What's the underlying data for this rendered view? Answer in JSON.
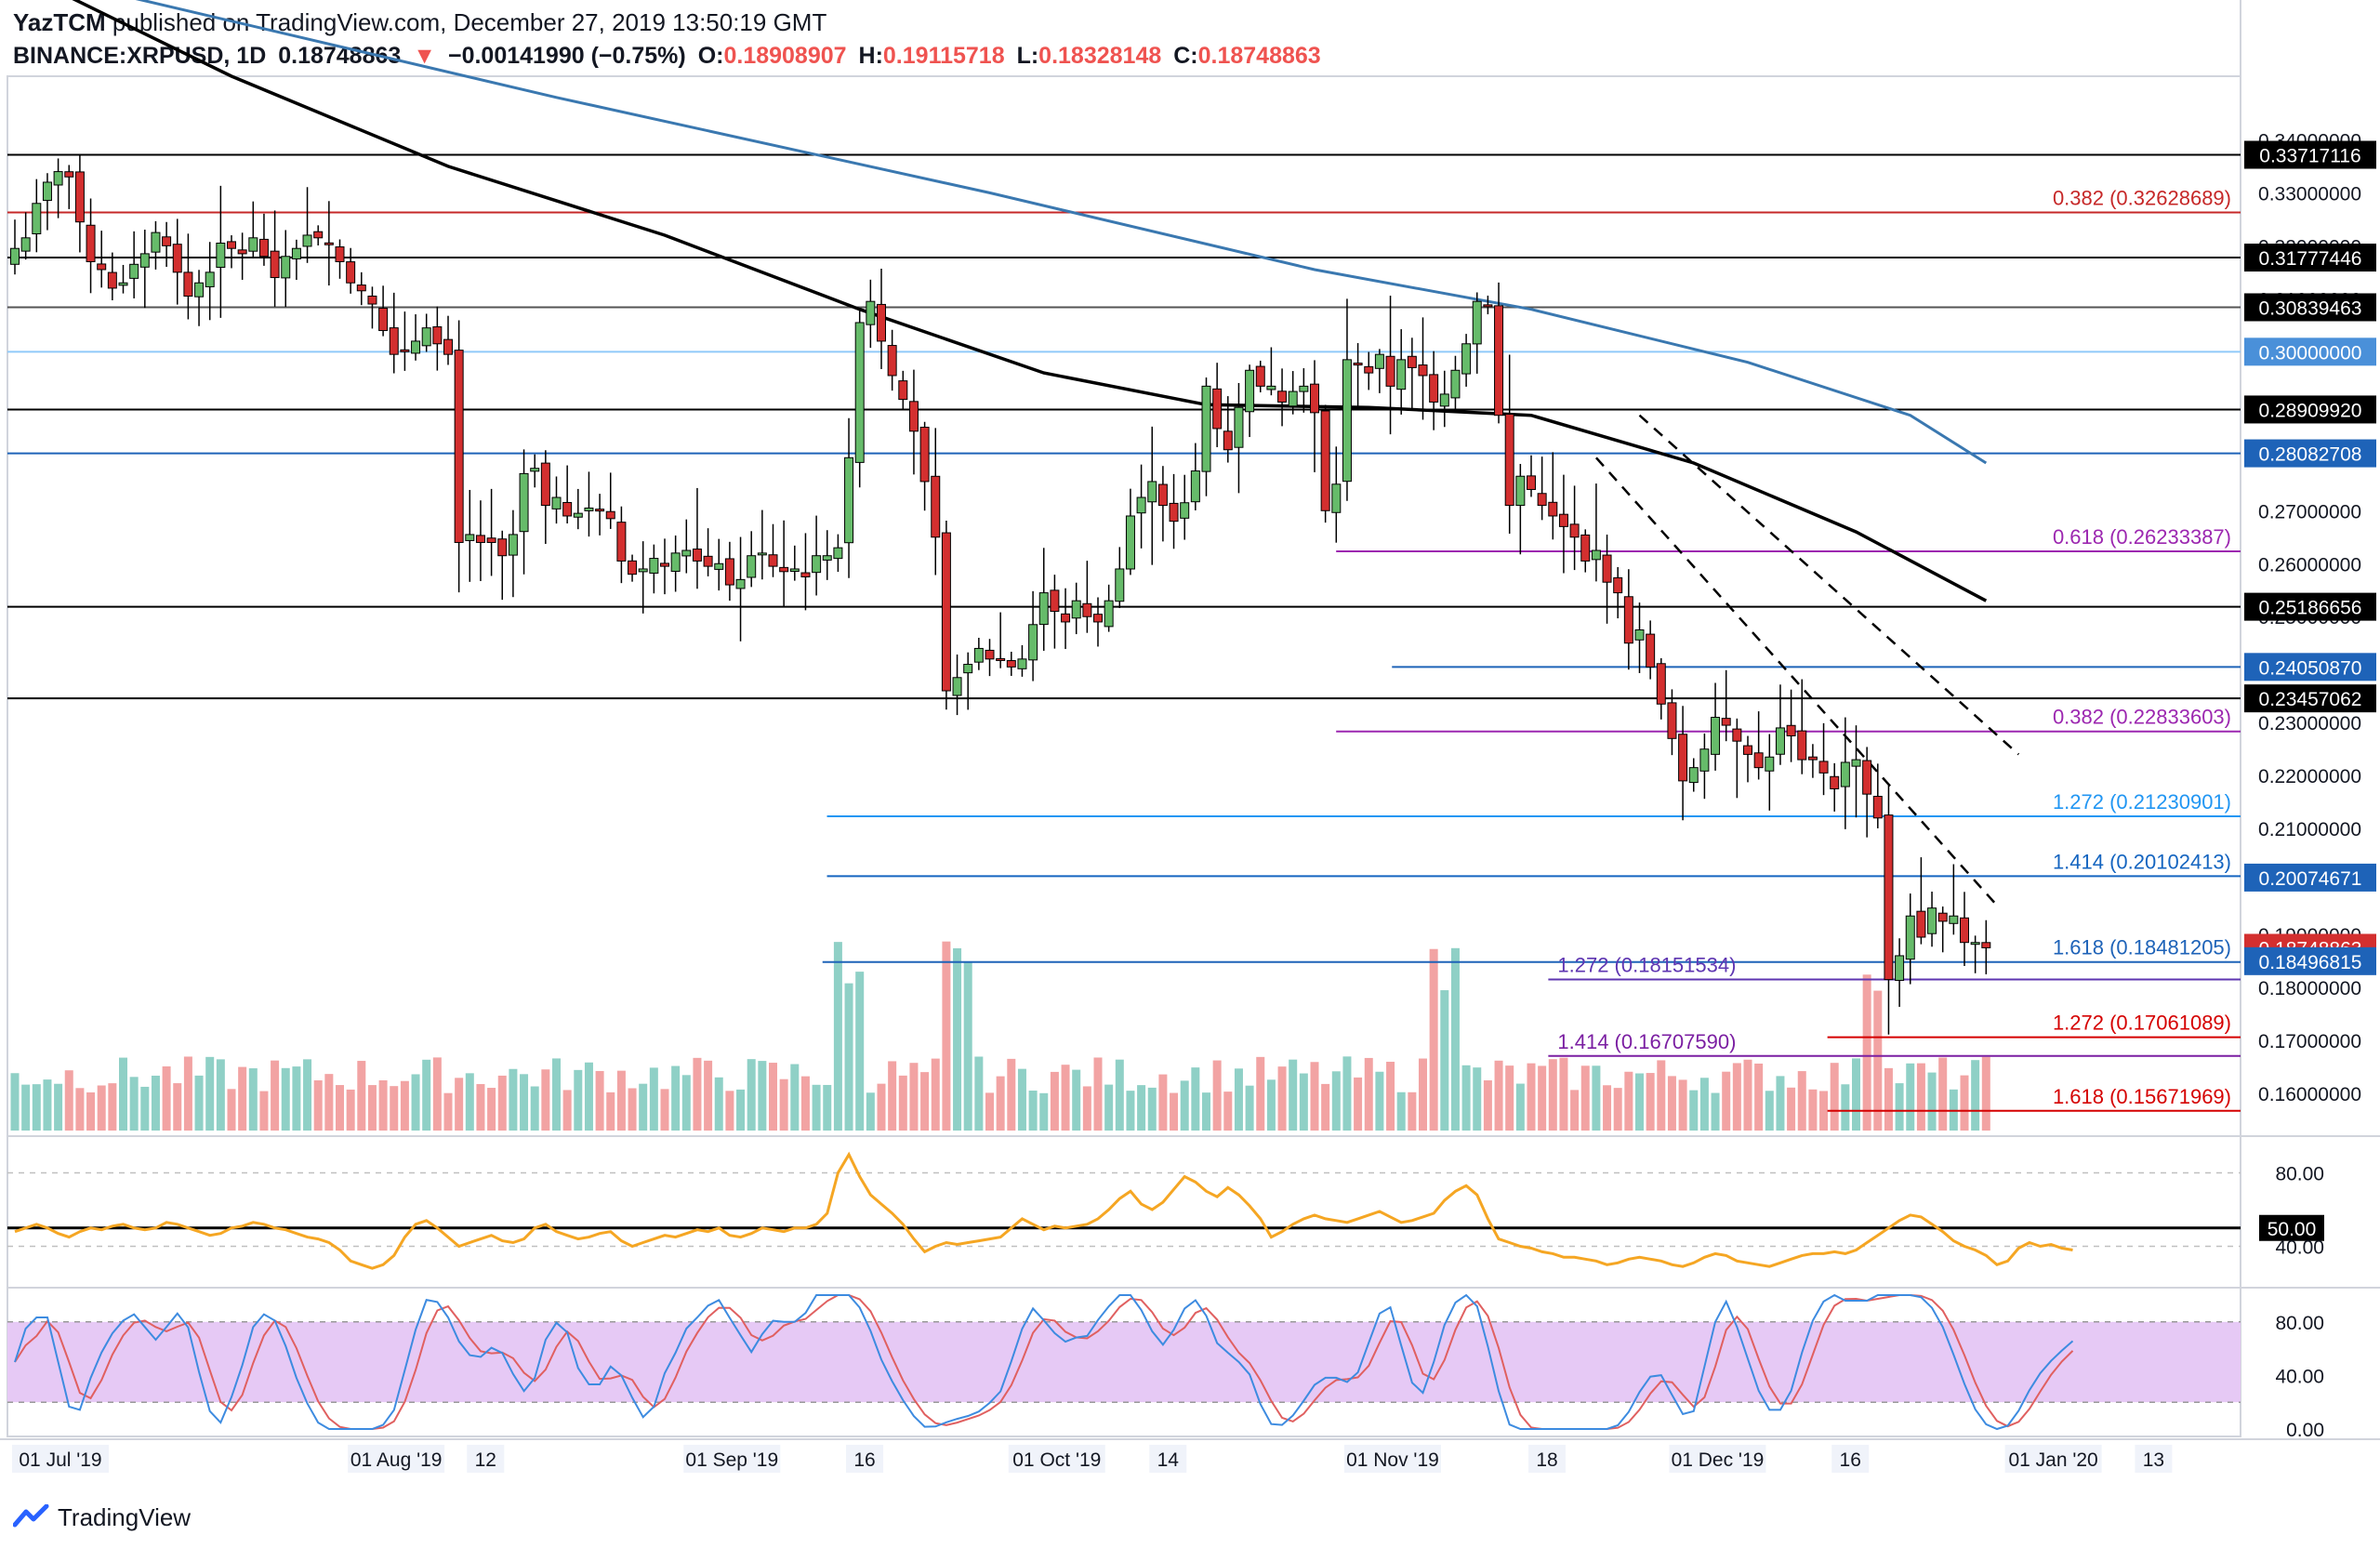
{
  "header": {
    "publisher": "YazTCM",
    "published_text": "published on TradingView.com, December 27, 2019 13:50:19 GMT",
    "symbol": "BINANCE:XRPUSD, 1D",
    "last": "0.18748863",
    "change": "−0.00141990 (−0.75%)",
    "o_label": "O:",
    "o": "0.18908907",
    "h_label": "H:",
    "h": "0.19115718",
    "l_label": "L:",
    "l": "0.18328148",
    "c_label": "C:",
    "c": "0.18748863"
  },
  "footer": {
    "brand": "TradingView"
  },
  "colors": {
    "up": "#66bb6a",
    "down": "#d32f2f",
    "vol_up": "#8fd0c6",
    "vol_down": "#f2a3a3",
    "ma100": "#000000",
    "ma200": "#3a78b0",
    "rsi": "#f5a623",
    "stoch_k": "#3d8be0",
    "stoch_d": "#e06060",
    "stoch_band": "#e6c9f5",
    "fib_purple": "#9c27b0",
    "fib_blue": "#2196f3",
    "fib_red": "#d50000"
  },
  "chart_data": {
    "type": "candlestick",
    "price_axis": {
      "ticks": [
        "0.34000000",
        "0.33000000",
        "0.32000000",
        "0.31000000",
        "0.29000000",
        "0.27000000",
        "0.26000000",
        "0.25000000",
        "0.23000000",
        "0.22000000",
        "0.21000000",
        "0.19000000",
        "0.18000000",
        "0.17000000",
        "0.16000000"
      ],
      "range": [
        0.153,
        0.352
      ]
    },
    "price_labels": [
      {
        "value": 0.33717116,
        "text": "0.33717116",
        "style": "black"
      },
      {
        "value": 0.31777446,
        "text": "0.31777446",
        "style": "black"
      },
      {
        "value": 0.30839463,
        "text": "0.30839463",
        "style": "black"
      },
      {
        "value": 0.3,
        "text": "0.30000000",
        "style": "lightblue"
      },
      {
        "value": 0.2890992,
        "text": "0.28909920",
        "style": "black"
      },
      {
        "value": 0.28082708,
        "text": "0.28082708",
        "style": "blue"
      },
      {
        "value": 0.25186656,
        "text": "0.25186656",
        "style": "black"
      },
      {
        "value": 0.2405087,
        "text": "0.24050870",
        "style": "blue"
      },
      {
        "value": 0.23457062,
        "text": "0.23457062",
        "style": "black"
      },
      {
        "value": 0.20074671,
        "text": "0.20074671",
        "style": "blue"
      },
      {
        "value": 0.18748863,
        "text": "0.18748863",
        "style": "red"
      },
      {
        "value": 0.18496815,
        "text": "0.18496815",
        "style": "blue"
      }
    ],
    "horizontal_levels": [
      {
        "value": 0.33717116,
        "color": "#000000",
        "x0": 0.0
      },
      {
        "value": 0.32628689,
        "color": "#c62828",
        "x0": 0.0,
        "label": "0.382 (0.32628689)"
      },
      {
        "value": 0.31777446,
        "color": "#000000",
        "x0": 0.0
      },
      {
        "value": 0.30839463,
        "color": "#555555",
        "x0": 0.0
      },
      {
        "value": 0.3,
        "color": "#90caf9",
        "x0": 0.0
      },
      {
        "value": 0.2890992,
        "color": "#000000",
        "x0": 0.0
      },
      {
        "value": 0.28082708,
        "color": "#1e63b8",
        "x0": 0.0
      },
      {
        "value": 0.26233387,
        "color": "#9c27b0",
        "x0": 0.595,
        "label": "0.618 (0.26233387)"
      },
      {
        "value": 0.25186656,
        "color": "#000000",
        "x0": 0.0
      },
      {
        "value": 0.2405087,
        "color": "#1e63b8",
        "x0": 0.62
      },
      {
        "value": 0.23457062,
        "color": "#000000",
        "x0": 0.0
      },
      {
        "value": 0.22833603,
        "color": "#9c27b0",
        "x0": 0.595,
        "label": "0.382 (0.22833603)"
      },
      {
        "value": 0.21230901,
        "color": "#2196f3",
        "x0": 0.367,
        "label": "1.272 (0.21230901)"
      },
      {
        "value": 0.20102413,
        "color": "#1565c0",
        "x0": 0.367,
        "label": "1.414 (0.20102413)"
      },
      {
        "value": 0.18481205,
        "color": "#1e63b8",
        "x0": 0.365,
        "label": "1.618 (0.18481205)"
      },
      {
        "value": 0.18151534,
        "color": "#5e35b1",
        "x0": 0.69,
        "label": "1.272 (0.18151534)",
        "label_left": true
      },
      {
        "value": 0.17061089,
        "color": "#d50000",
        "x0": 0.815,
        "label": "1.272 (0.17061089)"
      },
      {
        "value": 0.1670759,
        "color": "#7b1fa2",
        "x0": 0.69,
        "label": "1.414 (0.16707590)",
        "label_left": true
      },
      {
        "value": 0.15671969,
        "color": "#d50000",
        "x0": 0.815,
        "label": "1.618 (0.15671969)"
      }
    ],
    "x_axis": {
      "labels": [
        {
          "text": "01 Jul '19",
          "day": 0
        },
        {
          "text": "01 Aug '19",
          "day": 31
        },
        {
          "text": "12",
          "day": 42
        },
        {
          "text": "01 Sep '19",
          "day": 62
        },
        {
          "text": "16",
          "day": 77
        },
        {
          "text": "01 Oct '19",
          "day": 92
        },
        {
          "text": "14",
          "day": 105
        },
        {
          "text": "01 Nov '19",
          "day": 123
        },
        {
          "text": "18",
          "day": 140
        },
        {
          "text": "01 Dec '19",
          "day": 153
        },
        {
          "text": "16",
          "day": 168
        },
        {
          "text": "01 Jan '20",
          "day": 184
        },
        {
          "text": "13",
          "day": 196
        }
      ]
    },
    "candles_close": [
      0.3195,
      0.3215,
      0.328,
      0.332,
      0.334,
      0.333,
      0.3245,
      0.317,
      0.3155,
      0.312,
      0.313,
      0.3165,
      0.3185,
      0.3225,
      0.32,
      0.315,
      0.3105,
      0.313,
      0.315,
      0.3205,
      0.3195,
      0.3185,
      0.3215,
      0.318,
      0.314,
      0.318,
      0.3195,
      0.322,
      0.3215,
      0.3205,
      0.317,
      0.313,
      0.3115,
      0.309,
      0.304,
      0.2995,
      0.3,
      0.302,
      0.3045,
      0.3015,
      0.2995,
      0.264,
      0.2655,
      0.264,
      0.264,
      0.2615,
      0.2655,
      0.277,
      0.278,
      0.271,
      0.2725,
      0.269,
      0.2695,
      0.2705,
      0.27,
      0.2685,
      0.2605,
      0.258,
      0.259,
      0.261,
      0.2595,
      0.262,
      0.2625,
      0.2605,
      0.2595,
      0.26,
      0.256,
      0.257,
      0.2615,
      0.262,
      0.2595,
      0.2585,
      0.259,
      0.2575,
      0.2615,
      0.2615,
      0.263,
      0.28,
      0.3055,
      0.3095,
      0.302,
      0.2955,
      0.291,
      0.285,
      0.2755,
      0.265,
      0.236,
      0.2385,
      0.241,
      0.244,
      0.242,
      0.242,
      0.2405,
      0.242,
      0.2485,
      0.2545,
      0.251,
      0.249,
      0.253,
      0.25,
      0.249,
      0.253,
      0.259,
      0.269,
      0.2725,
      0.2755,
      0.271,
      0.268,
      0.2715,
      0.2775,
      0.2935,
      0.2855,
      0.2815,
      0.2895,
      0.2965,
      0.2935,
      0.2935,
      0.2905,
      0.2925,
      0.2935,
      0.2885,
      0.27,
      0.275,
      0.2985,
      0.2975,
      0.296,
      0.2995,
      0.2935,
      0.2985,
      0.297,
      0.2955,
      0.2905,
      0.292,
      0.2965,
      0.3015,
      0.3095,
      0.3085,
      0.288,
      0.271,
      0.2765,
      0.274,
      0.271,
      0.269,
      0.267,
      0.265,
      0.2605,
      0.2625,
      0.2565,
      0.2545,
      0.245,
      0.2475,
      0.2405,
      0.2335,
      0.227,
      0.219,
      0.2215,
      0.225,
      0.231,
      0.2295,
      0.2265,
      0.224,
      0.2215,
      0.2235,
      0.229,
      0.2275,
      0.223,
      0.223,
      0.2205,
      0.2175,
      0.2225,
      0.223,
      0.2165,
      0.212,
      0.1815,
      0.186,
      0.1935,
      0.1895,
      0.195,
      0.1925,
      0.1935,
      0.1885,
      0.1885,
      0.1875
    ],
    "ma100_points": [
      [
        0,
        0.372
      ],
      [
        20,
        0.352
      ],
      [
        40,
        0.335
      ],
      [
        60,
        0.322
      ],
      [
        78,
        0.308
      ],
      [
        95,
        0.296
      ],
      [
        110,
        0.29
      ],
      [
        125,
        0.2895
      ],
      [
        140,
        0.288
      ],
      [
        155,
        0.279
      ],
      [
        170,
        0.266
      ],
      [
        182,
        0.253
      ]
    ],
    "ma200_points": [
      [
        0,
        0.372
      ],
      [
        50,
        0.348
      ],
      [
        90,
        0.33
      ],
      [
        120,
        0.3155
      ],
      [
        140,
        0.308
      ],
      [
        160,
        0.298
      ],
      [
        175,
        0.288
      ],
      [
        182,
        0.279
      ]
    ],
    "trend_lines": [
      {
        "p1": [
          146,
          0.28
        ],
        "p2": [
          183,
          0.1955
        ]
      },
      {
        "p1": [
          150,
          0.288
        ],
        "p2": [
          185,
          0.224
        ]
      }
    ],
    "rsi": {
      "ticks": [
        "80.00",
        "50.00",
        "40.00"
      ],
      "range": [
        20,
        100
      ],
      "level_label": "50.00",
      "values": [
        48,
        50,
        52,
        50,
        47,
        45,
        48,
        50,
        49,
        51,
        52,
        50,
        49,
        50,
        53,
        52,
        50,
        48,
        46,
        47,
        50,
        51,
        53,
        52,
        50,
        49,
        47,
        45,
        44,
        42,
        38,
        32,
        30,
        28,
        30,
        35,
        45,
        52,
        54,
        50,
        45,
        40,
        42,
        44,
        46,
        43,
        42,
        44,
        50,
        52,
        48,
        46,
        44,
        45,
        47,
        48,
        43,
        40,
        42,
        44,
        46,
        45,
        47,
        49,
        48,
        50,
        46,
        45,
        47,
        50,
        49,
        48,
        50,
        50,
        52,
        58,
        80,
        90,
        78,
        68,
        63,
        58,
        52,
        44,
        37,
        40,
        42,
        41,
        42,
        43,
        44,
        45,
        50,
        55,
        52,
        49,
        51,
        50,
        51,
        52,
        55,
        60,
        66,
        70,
        63,
        60,
        64,
        71,
        78,
        75,
        70,
        67,
        72,
        68,
        62,
        55,
        45,
        48,
        52,
        55,
        57,
        55,
        54,
        53,
        55,
        57,
        59,
        56,
        53,
        54,
        56,
        58,
        65,
        70,
        73,
        68,
        55,
        44,
        42,
        40,
        39,
        37,
        36,
        34,
        34,
        33,
        32,
        30,
        31,
        33,
        34,
        33,
        32,
        30,
        29,
        31,
        34,
        36,
        35,
        32,
        31,
        30,
        29,
        31,
        33,
        35,
        36,
        36,
        37,
        36,
        38,
        42,
        46,
        50,
        54,
        57,
        56,
        52,
        48,
        43,
        40,
        38,
        35,
        30,
        32,
        39,
        42,
        40,
        41,
        39,
        38
      ]
    },
    "stoch": {
      "ticks": [
        "80.00",
        "40.00",
        "0.00"
      ],
      "range": [
        0,
        100
      ],
      "band": [
        20,
        80
      ]
    }
  }
}
